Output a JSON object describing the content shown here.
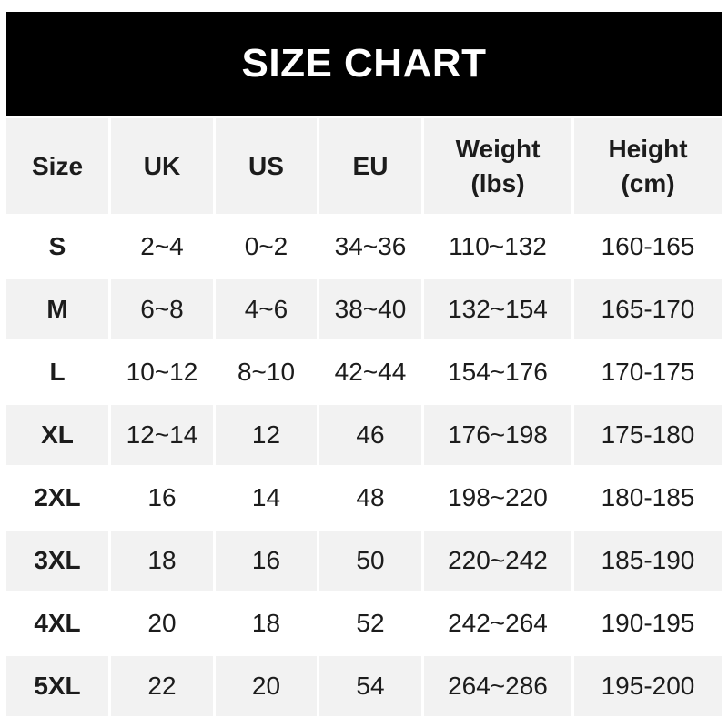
{
  "banner": {
    "title": "SIZE CHART",
    "bg_color": "#000000",
    "text_color": "#ffffff"
  },
  "table": {
    "header_bg": "#f2f2f2",
    "alt_row_bg": "#f2f2f2",
    "row_bg": "#ffffff",
    "text_color": "#1c1c1c",
    "columns": [
      {
        "key": "size",
        "label": "Size"
      },
      {
        "key": "uk",
        "label": "UK"
      },
      {
        "key": "us",
        "label": "US"
      },
      {
        "key": "eu",
        "label": "EU"
      },
      {
        "key": "weight",
        "label": "Weight",
        "sub": "(lbs)"
      },
      {
        "key": "height",
        "label": "Height",
        "sub": "(cm)"
      }
    ]
  },
  "chart_data": {
    "type": "table",
    "title": "SIZE CHART",
    "columns": [
      "Size",
      "UK",
      "US",
      "EU",
      "Weight (lbs)",
      "Height (cm)"
    ],
    "rows": [
      [
        "S",
        "2~4",
        "0~2",
        "34~36",
        "110~132",
        "160-165"
      ],
      [
        "M",
        "6~8",
        "4~6",
        "38~40",
        "132~154",
        "165-170"
      ],
      [
        "L",
        "10~12",
        "8~10",
        "42~44",
        "154~176",
        "170-175"
      ],
      [
        "XL",
        "12~14",
        "12",
        "46",
        "176~198",
        "175-180"
      ],
      [
        "2XL",
        "16",
        "14",
        "48",
        "198~220",
        "180-185"
      ],
      [
        "3XL",
        "18",
        "16",
        "50",
        "220~242",
        "185-190"
      ],
      [
        "4XL",
        "20",
        "18",
        "52",
        "242~264",
        "190-195"
      ],
      [
        "5XL",
        "22",
        "20",
        "54",
        "264~286",
        "195-200"
      ]
    ]
  }
}
